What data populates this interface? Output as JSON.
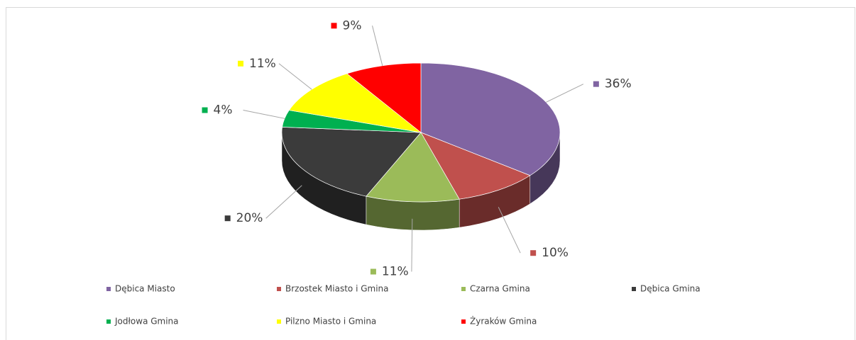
{
  "chart_data": {
    "type": "pie3d",
    "categories": [
      "Dębica Miasto",
      "Brzostek Miasto i Gmina",
      "Czarna Gmina",
      "Dębica Gmina",
      "Jodłowa Gmina",
      "Pilzno Miasto i Gmina",
      "Żyraków Gmina"
    ],
    "values": [
      36,
      10,
      11,
      20,
      4,
      11,
      9
    ],
    "value_labels": [
      "36%",
      "10%",
      "11%",
      "20%",
      "4%",
      "11%",
      "9%"
    ],
    "colors": [
      "#8064a2",
      "#c0504d",
      "#9bbb59",
      "#3b3b3b",
      "#00b050",
      "#ffff00",
      "#ff0000"
    ],
    "legend": "bottom"
  }
}
